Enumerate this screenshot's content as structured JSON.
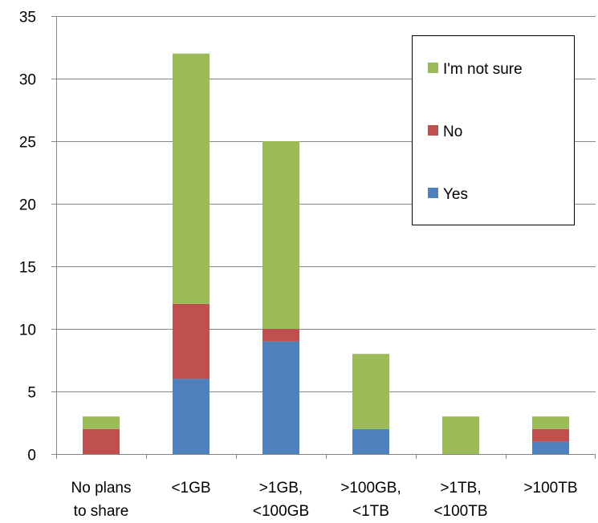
{
  "chart_data": {
    "type": "bar",
    "stacked": true,
    "categories": [
      [
        "No plans",
        "to share"
      ],
      [
        "<1GB"
      ],
      [
        ">1GB,",
        "<100GB"
      ],
      [
        ">100GB,",
        "<1TB"
      ],
      [
        ">1TB,",
        "<100TB"
      ],
      [
        ">100TB"
      ]
    ],
    "series": [
      {
        "name": "Yes",
        "color": "#4f81bd",
        "values": [
          0,
          6,
          9,
          2,
          0,
          1
        ]
      },
      {
        "name": "No",
        "color": "#c0504d",
        "values": [
          2,
          6,
          1,
          0,
          0,
          1
        ]
      },
      {
        "name": "I'm not sure",
        "color": "#9bbb59",
        "values": [
          1,
          20,
          15,
          6,
          3,
          1
        ]
      }
    ],
    "ylim": [
      0,
      35
    ],
    "yticks": [
      0,
      5,
      10,
      15,
      20,
      25,
      30,
      35
    ],
    "grid": true,
    "legend": {
      "position": "top-right",
      "order": [
        "I'm not sure",
        "No",
        "Yes"
      ]
    }
  }
}
